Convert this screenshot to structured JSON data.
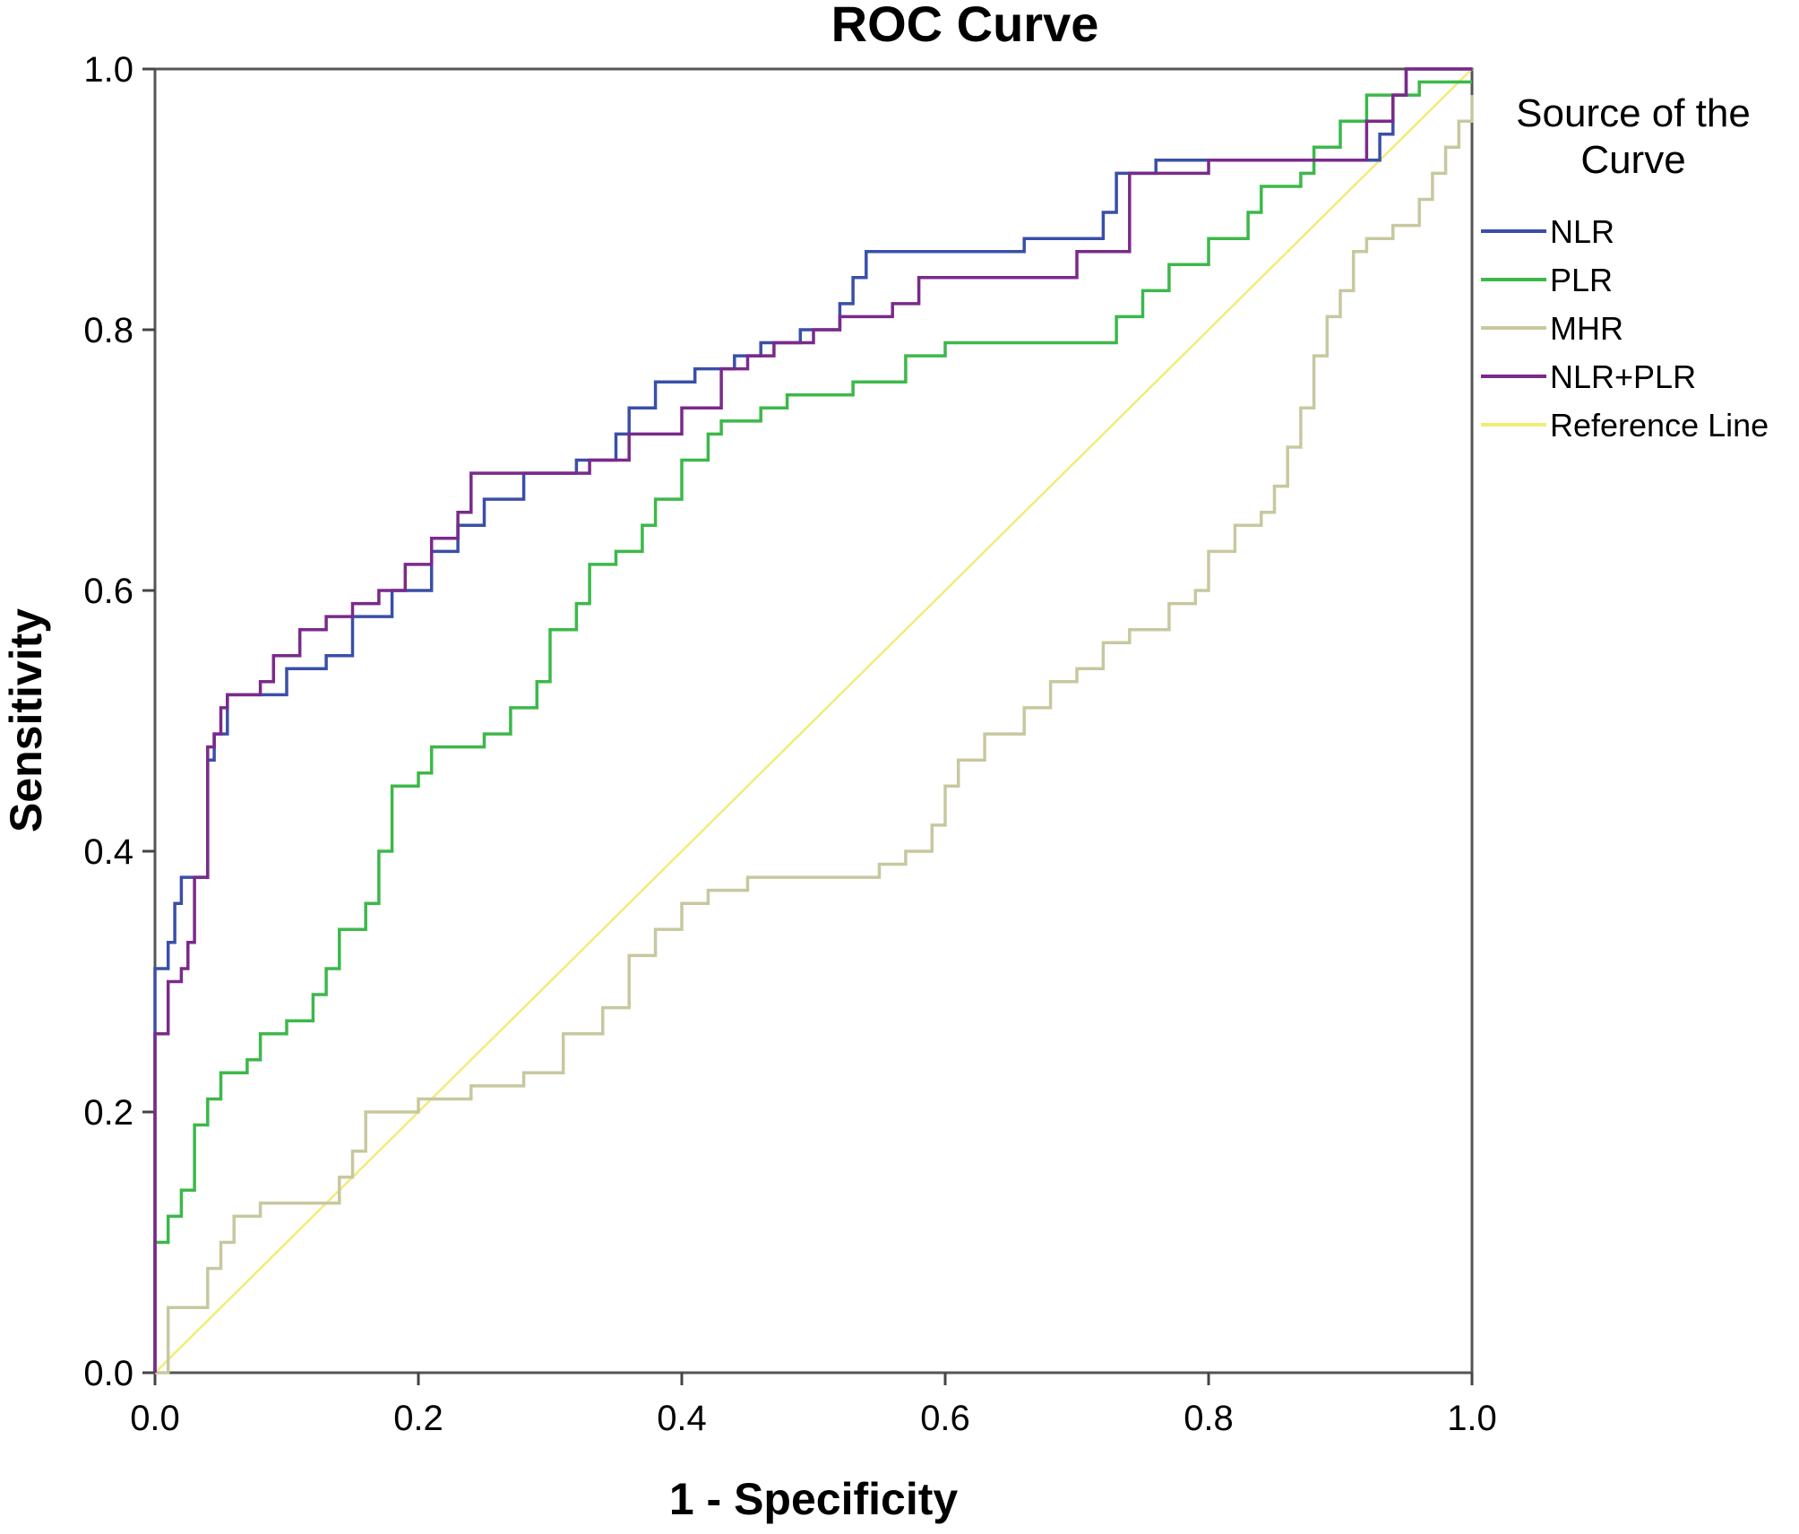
{
  "chart_data": {
    "type": "line",
    "title": "ROC Curve",
    "xlabel": "1 - Specificity",
    "ylabel": "Sensitivity",
    "xlim": [
      0,
      1
    ],
    "ylim": [
      0,
      1
    ],
    "xticks": [
      "0.0",
      "0.2",
      "0.4",
      "0.6",
      "0.8",
      "1.0"
    ],
    "yticks": [
      "0.0",
      "0.2",
      "0.4",
      "0.6",
      "0.8",
      "1.0"
    ],
    "grid": false,
    "legend_title": "Source of the Curve",
    "legend_position": "right",
    "series": [
      {
        "name": "NLR",
        "color": "#3a4fa8",
        "points": [
          [
            0,
            0
          ],
          [
            0,
            0.31
          ],
          [
            0.01,
            0.33
          ],
          [
            0.015,
            0.36
          ],
          [
            0.02,
            0.38
          ],
          [
            0.035,
            0.38
          ],
          [
            0.04,
            0.47
          ],
          [
            0.045,
            0.49
          ],
          [
            0.05,
            0.49
          ],
          [
            0.055,
            0.52
          ],
          [
            0.09,
            0.52
          ],
          [
            0.1,
            0.54
          ],
          [
            0.13,
            0.55
          ],
          [
            0.15,
            0.58
          ],
          [
            0.18,
            0.6
          ],
          [
            0.21,
            0.63
          ],
          [
            0.23,
            0.65
          ],
          [
            0.25,
            0.67
          ],
          [
            0.28,
            0.69
          ],
          [
            0.32,
            0.7
          ],
          [
            0.35,
            0.72
          ],
          [
            0.36,
            0.74
          ],
          [
            0.38,
            0.76
          ],
          [
            0.41,
            0.77
          ],
          [
            0.44,
            0.78
          ],
          [
            0.46,
            0.79
          ],
          [
            0.49,
            0.8
          ],
          [
            0.52,
            0.82
          ],
          [
            0.53,
            0.84
          ],
          [
            0.54,
            0.86
          ],
          [
            0.66,
            0.87
          ],
          [
            0.7,
            0.87
          ],
          [
            0.72,
            0.89
          ],
          [
            0.73,
            0.92
          ],
          [
            0.76,
            0.93
          ],
          [
            0.88,
            0.93
          ],
          [
            0.93,
            0.95
          ],
          [
            0.94,
            0.98
          ],
          [
            0.95,
            1
          ],
          [
            1,
            1
          ]
        ]
      },
      {
        "name": "PLR",
        "color": "#3cb84a",
        "points": [
          [
            0,
            0
          ],
          [
            0,
            0.1
          ],
          [
            0.01,
            0.12
          ],
          [
            0.02,
            0.14
          ],
          [
            0.03,
            0.19
          ],
          [
            0.04,
            0.21
          ],
          [
            0.05,
            0.23
          ],
          [
            0.07,
            0.24
          ],
          [
            0.08,
            0.26
          ],
          [
            0.1,
            0.27
          ],
          [
            0.12,
            0.29
          ],
          [
            0.13,
            0.31
          ],
          [
            0.14,
            0.34
          ],
          [
            0.16,
            0.36
          ],
          [
            0.17,
            0.4
          ],
          [
            0.18,
            0.45
          ],
          [
            0.2,
            0.46
          ],
          [
            0.21,
            0.48
          ],
          [
            0.25,
            0.49
          ],
          [
            0.27,
            0.51
          ],
          [
            0.29,
            0.53
          ],
          [
            0.3,
            0.57
          ],
          [
            0.32,
            0.59
          ],
          [
            0.33,
            0.62
          ],
          [
            0.35,
            0.63
          ],
          [
            0.37,
            0.65
          ],
          [
            0.38,
            0.67
          ],
          [
            0.4,
            0.7
          ],
          [
            0.42,
            0.72
          ],
          [
            0.43,
            0.73
          ],
          [
            0.46,
            0.74
          ],
          [
            0.48,
            0.75
          ],
          [
            0.53,
            0.76
          ],
          [
            0.57,
            0.78
          ],
          [
            0.6,
            0.79
          ],
          [
            0.72,
            0.79
          ],
          [
            0.73,
            0.81
          ],
          [
            0.75,
            0.83
          ],
          [
            0.77,
            0.85
          ],
          [
            0.8,
            0.87
          ],
          [
            0.83,
            0.89
          ],
          [
            0.84,
            0.91
          ],
          [
            0.87,
            0.92
          ],
          [
            0.88,
            0.94
          ],
          [
            0.9,
            0.96
          ],
          [
            0.92,
            0.98
          ],
          [
            0.96,
            0.99
          ],
          [
            1,
            0.99
          ]
        ]
      },
      {
        "name": "MHR",
        "color": "#c8c8a0",
        "points": [
          [
            0,
            0
          ],
          [
            0.01,
            0.05
          ],
          [
            0.04,
            0.08
          ],
          [
            0.05,
            0.1
          ],
          [
            0.06,
            0.12
          ],
          [
            0.08,
            0.13
          ],
          [
            0.12,
            0.13
          ],
          [
            0.14,
            0.15
          ],
          [
            0.15,
            0.17
          ],
          [
            0.16,
            0.2
          ],
          [
            0.2,
            0.21
          ],
          [
            0.24,
            0.22
          ],
          [
            0.28,
            0.23
          ],
          [
            0.31,
            0.26
          ],
          [
            0.34,
            0.28
          ],
          [
            0.36,
            0.32
          ],
          [
            0.38,
            0.34
          ],
          [
            0.4,
            0.36
          ],
          [
            0.42,
            0.37
          ],
          [
            0.45,
            0.38
          ],
          [
            0.5,
            0.38
          ],
          [
            0.55,
            0.39
          ],
          [
            0.57,
            0.4
          ],
          [
            0.59,
            0.42
          ],
          [
            0.6,
            0.45
          ],
          [
            0.61,
            0.47
          ],
          [
            0.63,
            0.49
          ],
          [
            0.66,
            0.51
          ],
          [
            0.68,
            0.53
          ],
          [
            0.7,
            0.54
          ],
          [
            0.72,
            0.56
          ],
          [
            0.74,
            0.57
          ],
          [
            0.77,
            0.59
          ],
          [
            0.79,
            0.6
          ],
          [
            0.8,
            0.63
          ],
          [
            0.82,
            0.65
          ],
          [
            0.84,
            0.66
          ],
          [
            0.85,
            0.68
          ],
          [
            0.86,
            0.71
          ],
          [
            0.87,
            0.74
          ],
          [
            0.88,
            0.78
          ],
          [
            0.89,
            0.81
          ],
          [
            0.9,
            0.83
          ],
          [
            0.91,
            0.86
          ],
          [
            0.92,
            0.87
          ],
          [
            0.94,
            0.88
          ],
          [
            0.96,
            0.9
          ],
          [
            0.97,
            0.92
          ],
          [
            0.98,
            0.94
          ],
          [
            0.99,
            0.96
          ],
          [
            1,
            0.98
          ]
        ]
      },
      {
        "name": "NLR+PLR",
        "color": "#7a2a8a",
        "points": [
          [
            0,
            0
          ],
          [
            0,
            0.26
          ],
          [
            0.01,
            0.3
          ],
          [
            0.02,
            0.31
          ],
          [
            0.025,
            0.33
          ],
          [
            0.03,
            0.38
          ],
          [
            0.04,
            0.39
          ],
          [
            0.04,
            0.48
          ],
          [
            0.045,
            0.49
          ],
          [
            0.05,
            0.51
          ],
          [
            0.055,
            0.52
          ],
          [
            0.08,
            0.53
          ],
          [
            0.09,
            0.55
          ],
          [
            0.11,
            0.57
          ],
          [
            0.13,
            0.58
          ],
          [
            0.15,
            0.59
          ],
          [
            0.17,
            0.6
          ],
          [
            0.19,
            0.62
          ],
          [
            0.21,
            0.64
          ],
          [
            0.23,
            0.66
          ],
          [
            0.24,
            0.69
          ],
          [
            0.28,
            0.69
          ],
          [
            0.33,
            0.7
          ],
          [
            0.36,
            0.72
          ],
          [
            0.4,
            0.74
          ],
          [
            0.43,
            0.77
          ],
          [
            0.45,
            0.78
          ],
          [
            0.47,
            0.79
          ],
          [
            0.5,
            0.8
          ],
          [
            0.52,
            0.81
          ],
          [
            0.56,
            0.82
          ],
          [
            0.58,
            0.84
          ],
          [
            0.66,
            0.84
          ],
          [
            0.7,
            0.86
          ],
          [
            0.74,
            0.88
          ],
          [
            0.74,
            0.92
          ],
          [
            0.8,
            0.93
          ],
          [
            0.88,
            0.93
          ],
          [
            0.92,
            0.96
          ],
          [
            0.94,
            0.98
          ],
          [
            0.95,
            1
          ],
          [
            1,
            1
          ]
        ]
      },
      {
        "name": "Reference Line",
        "color": "#f2ec78",
        "points": [
          [
            0,
            0
          ],
          [
            1,
            1
          ]
        ]
      }
    ]
  }
}
